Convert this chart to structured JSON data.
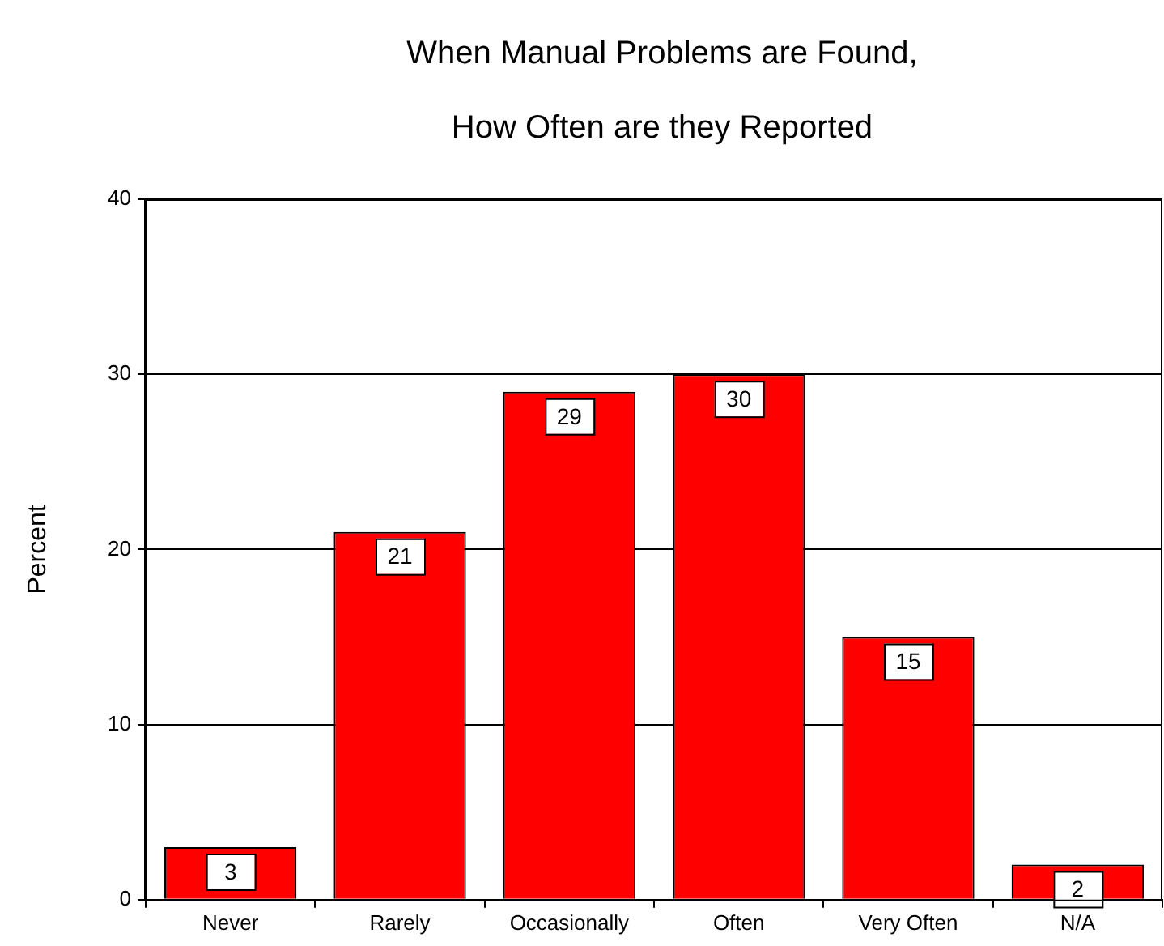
{
  "chart_data": {
    "type": "bar",
    "title": "When Manual Problems are Found, How Often are they Reported",
    "ylabel": "Percent",
    "categories": [
      "Never",
      "Rarely",
      "Occasionally",
      "Often",
      "Very Often",
      "N/A"
    ],
    "values": [
      3,
      21,
      29,
      30,
      15,
      2
    ],
    "color": "#ff0000",
    "ylim": [
      0,
      40
    ],
    "yticks": [
      0,
      10,
      20,
      30,
      40
    ],
    "grid": "y",
    "legend": false,
    "data_labels": true
  }
}
